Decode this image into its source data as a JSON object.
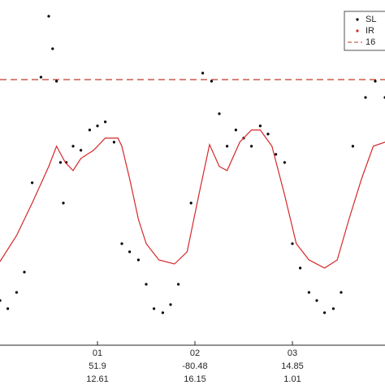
{
  "chart_data": {
    "type": "scatter",
    "xlim": [
      0,
      3.95
    ],
    "ylim": [
      0,
      425
    ],
    "xticks": [
      {
        "value": 1,
        "label": "01"
      },
      {
        "value": 2,
        "label": "02"
      },
      {
        "value": 3,
        "label": "03"
      }
    ],
    "xtick_sublabels": [
      [
        "51.9",
        "12.61"
      ],
      [
        "-80.48",
        "16.15"
      ],
      [
        "14.85",
        "1.01"
      ]
    ],
    "series": [
      {
        "name": "SL",
        "color": "#000000",
        "style": "dots",
        "x": [
          0,
          0.08,
          0.17,
          0.25,
          0.33,
          0.42,
          0.5,
          0.54,
          0.58,
          0.62,
          0.65,
          0.68,
          0.75,
          0.83,
          0.92,
          1,
          1.08,
          1.17,
          1.25,
          1.33,
          1.42,
          1.5,
          1.58,
          1.67,
          1.75,
          1.83,
          1.96,
          2.08,
          2.17,
          2.25,
          2.33,
          2.42,
          2.5,
          2.58,
          2.67,
          2.75,
          2.83,
          2.92,
          3,
          3.08,
          3.17,
          3.25,
          3.33,
          3.42,
          3.5,
          3.62,
          3.75,
          3.85,
          3.95
        ],
        "values": [
          55,
          45,
          65,
          90,
          200,
          330,
          405,
          365,
          325,
          225,
          175,
          225,
          245,
          240,
          265,
          270,
          275,
          250,
          125,
          115,
          105,
          75,
          45,
          40,
          50,
          75,
          175,
          335,
          325,
          285,
          245,
          265,
          255,
          245,
          270,
          260,
          235,
          225,
          125,
          95,
          65,
          55,
          40,
          45,
          65,
          245,
          305,
          325,
          305
        ]
      },
      {
        "name": "IR",
        "color": "#d62728",
        "style": "line",
        "x": [
          0,
          0.17,
          0.33,
          0.5,
          0.58,
          0.67,
          0.75,
          0.83,
          0.96,
          1.08,
          1.21,
          1.25,
          1.33,
          1.42,
          1.5,
          1.63,
          1.79,
          1.92,
          2.04,
          2.15,
          2.25,
          2.33,
          2.46,
          2.58,
          2.67,
          2.79,
          2.92,
          3.04,
          3.17,
          3.33,
          3.46,
          3.58,
          3.71,
          3.83,
          3.95
        ],
        "values": [
          103,
          135,
          175,
          220,
          245,
          225,
          215,
          230,
          240,
          255,
          255,
          245,
          205,
          155,
          125,
          105,
          100,
          115,
          185,
          247,
          220,
          215,
          250,
          265,
          265,
          245,
          185,
          125,
          105,
          95,
          105,
          155,
          205,
          245,
          250
        ]
      }
    ],
    "reference_lines": [
      {
        "name": "16",
        "value": 327,
        "color": "#c0392b"
      }
    ]
  }
}
